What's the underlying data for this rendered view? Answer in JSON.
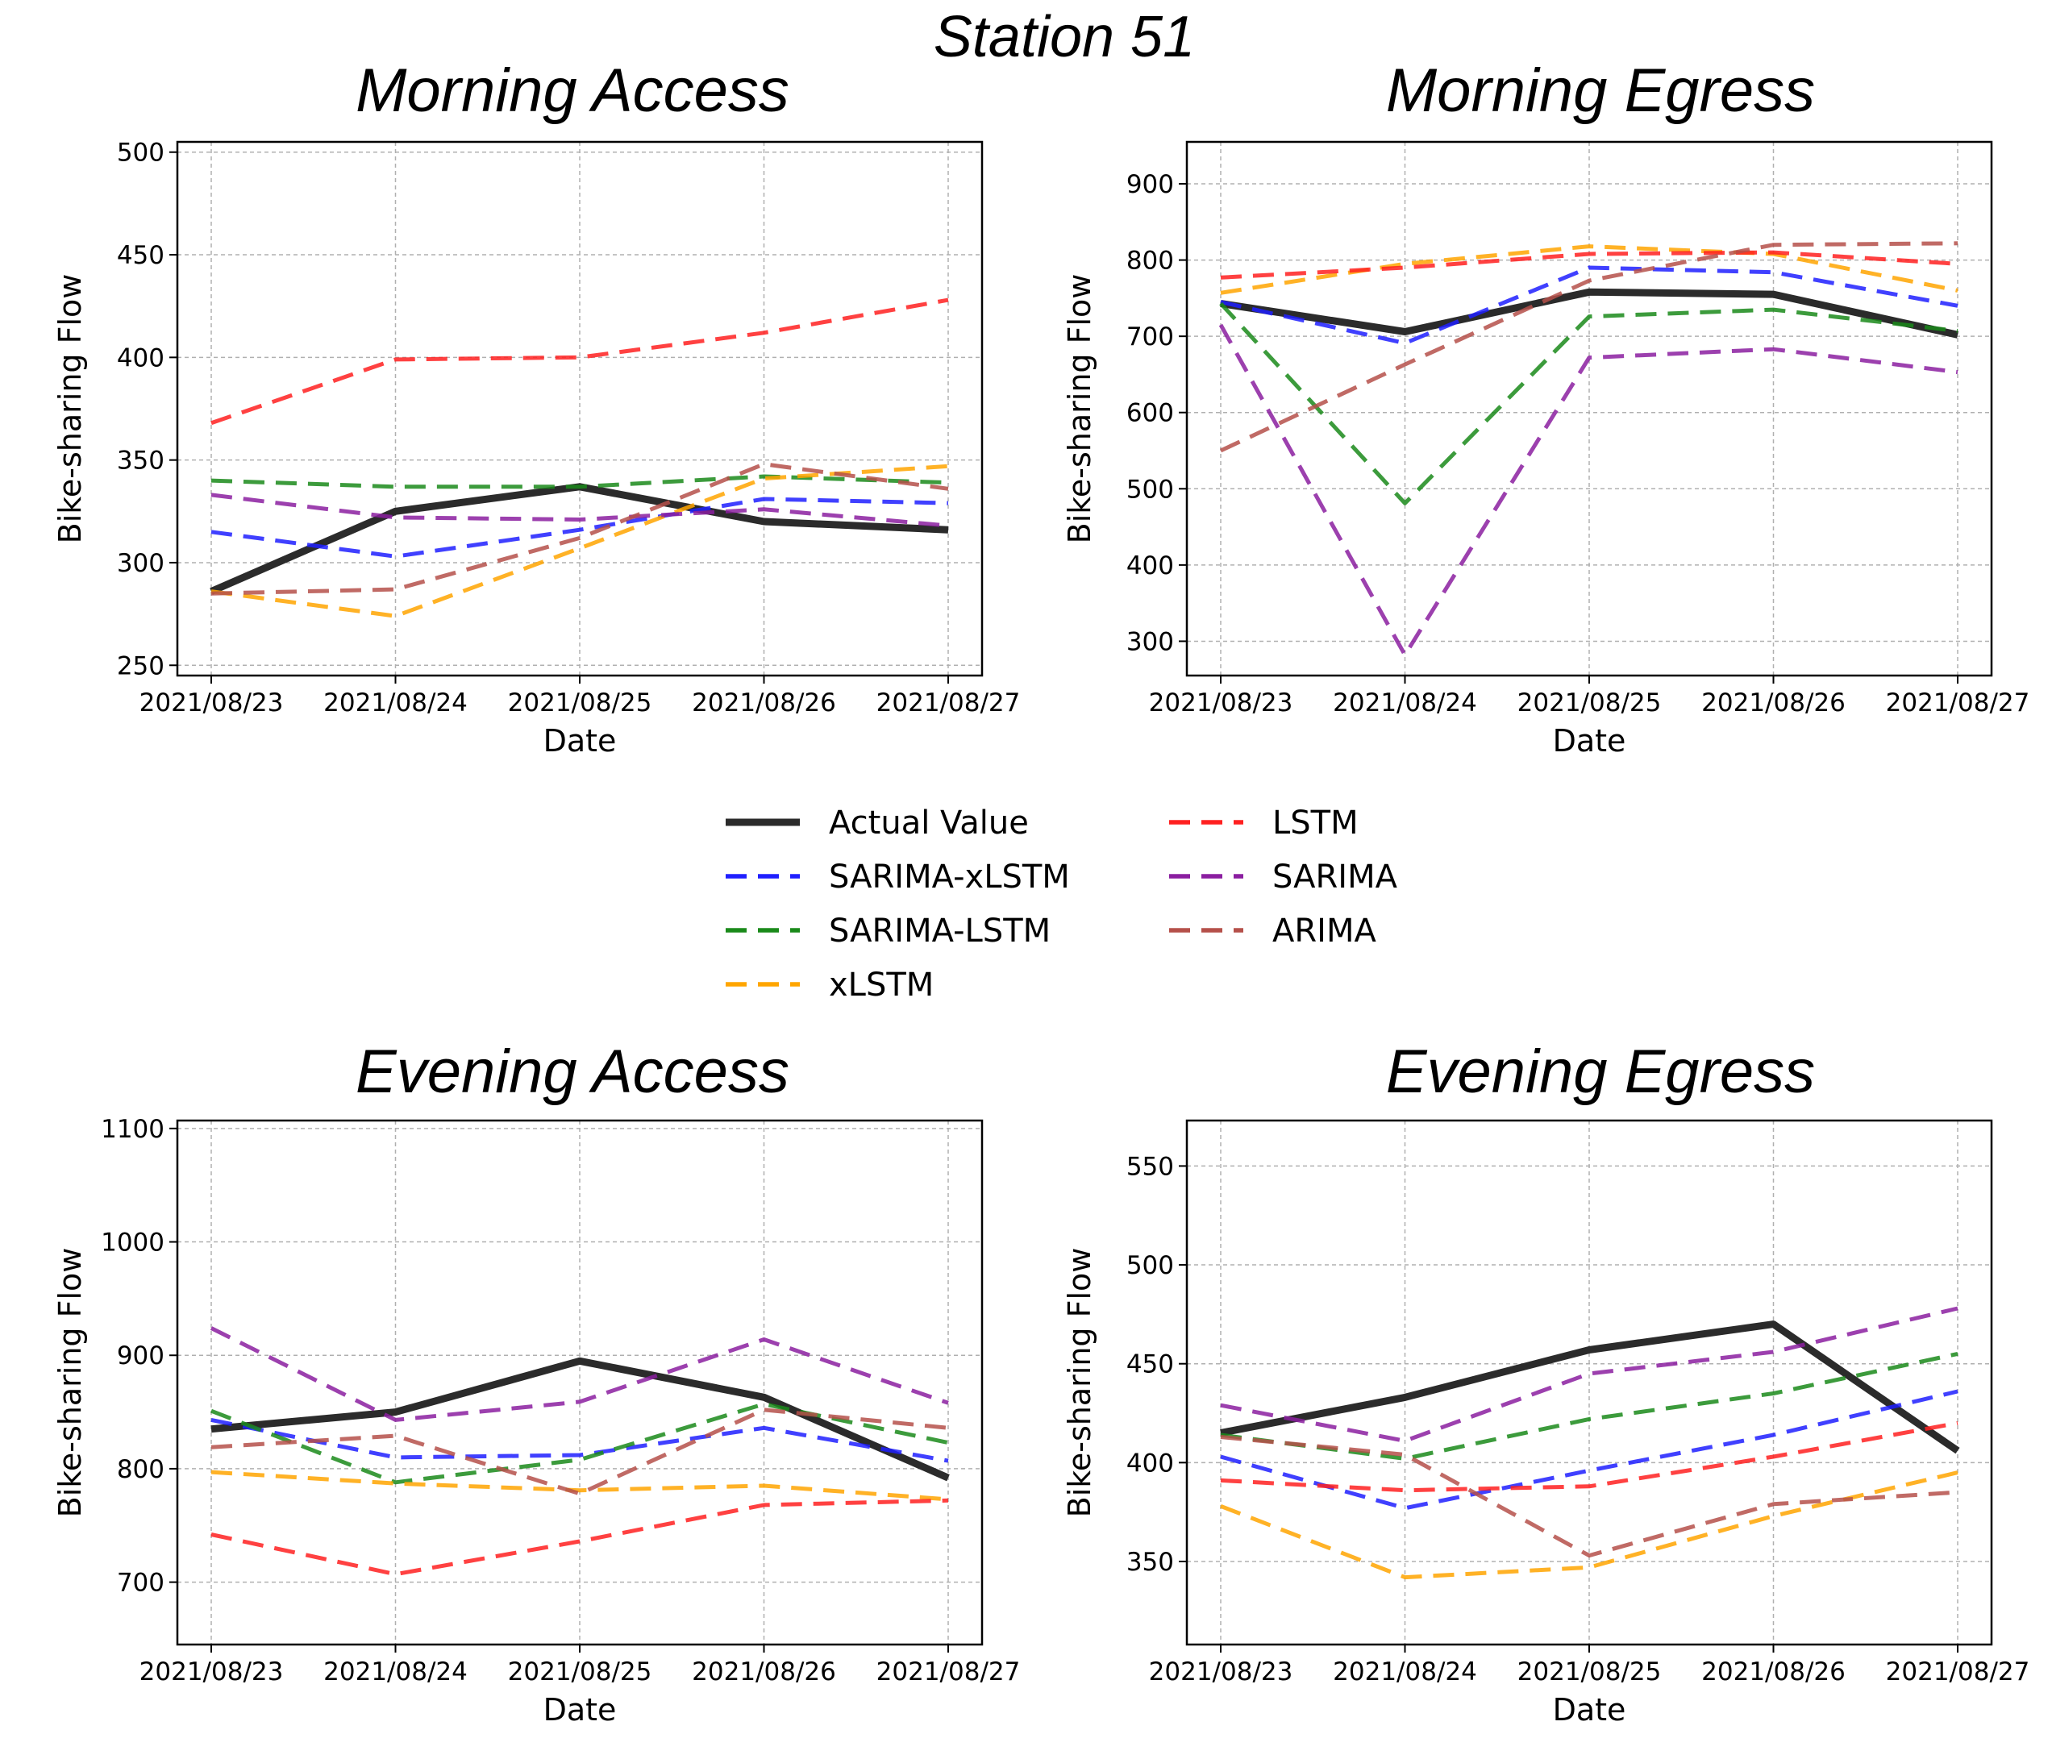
{
  "figure_title": "Station 51",
  "colors": {
    "Actual Value": "#2b2b2b",
    "SARIMA-xLSTM": "#1f1fff",
    "SARIMA-LSTM": "#1a8a1a",
    "xLSTM": "#ffa500",
    "LSTM": "#ff2020",
    "SARIMA": "#8b1ea0",
    "ARIMA": "#b5504a"
  },
  "legend": {
    "entries": [
      "Actual Value",
      "SARIMA-xLSTM",
      "SARIMA-LSTM",
      "xLSTM",
      "LSTM",
      "SARIMA",
      "ARIMA"
    ]
  },
  "chart_data": [
    {
      "type": "line",
      "title": "Morning Access",
      "xlabel": "Date",
      "ylabel": "Bike-sharing Flow",
      "categories": [
        "2021/08/23",
        "2021/08/24",
        "2021/08/25",
        "2021/08/26",
        "2021/08/27"
      ],
      "ylim": [
        245,
        505
      ],
      "yticks": [
        250,
        300,
        350,
        400,
        450,
        500
      ],
      "grid": true,
      "series": [
        {
          "name": "Actual Value",
          "values": [
            286,
            325,
            337,
            320,
            316
          ]
        },
        {
          "name": "SARIMA-xLSTM",
          "values": [
            315,
            303,
            316,
            331,
            329
          ]
        },
        {
          "name": "SARIMA-LSTM",
          "values": [
            340,
            337,
            337,
            342,
            339
          ]
        },
        {
          "name": "xLSTM",
          "values": [
            286,
            274,
            307,
            341,
            347
          ]
        },
        {
          "name": "LSTM",
          "values": [
            368,
            399,
            400,
            412,
            428
          ]
        },
        {
          "name": "SARIMA",
          "values": [
            333,
            322,
            321,
            326,
            318
          ]
        },
        {
          "name": "ARIMA",
          "values": [
            285,
            287,
            312,
            348,
            336
          ]
        }
      ]
    },
    {
      "type": "line",
      "title": "Morning Egress",
      "xlabel": "Date",
      "ylabel": "Bike-sharing Flow",
      "categories": [
        "2021/08/23",
        "2021/08/24",
        "2021/08/25",
        "2021/08/26",
        "2021/08/27"
      ],
      "ylim": [
        255,
        955
      ],
      "yticks": [
        300,
        400,
        500,
        600,
        700,
        800,
        900
      ],
      "grid": true,
      "series": [
        {
          "name": "Actual Value",
          "values": [
            743,
            706,
            758,
            755,
            702
          ]
        },
        {
          "name": "SARIMA-xLSTM",
          "values": [
            745,
            691,
            790,
            784,
            740
          ]
        },
        {
          "name": "SARIMA-LSTM",
          "values": [
            743,
            481,
            726,
            735,
            707
          ]
        },
        {
          "name": "xLSTM",
          "values": [
            757,
            795,
            818,
            808,
            760
          ]
        },
        {
          "name": "LSTM",
          "values": [
            777,
            790,
            808,
            810,
            795
          ]
        },
        {
          "name": "SARIMA",
          "values": [
            715,
            282,
            672,
            683,
            653
          ]
        },
        {
          "name": "ARIMA",
          "values": [
            550,
            663,
            773,
            820,
            822
          ]
        }
      ]
    },
    {
      "type": "line",
      "title": "Evening Access",
      "xlabel": "Date",
      "ylabel": "Bike-sharing Flow",
      "categories": [
        "2021/08/23",
        "2021/08/24",
        "2021/08/25",
        "2021/08/26",
        "2021/08/27"
      ],
      "ylim": [
        645,
        1107
      ],
      "yticks": [
        700,
        800,
        900,
        1000,
        1100
      ],
      "grid": true,
      "series": [
        {
          "name": "Actual Value",
          "values": [
            835,
            850,
            895,
            863,
            792
          ]
        },
        {
          "name": "SARIMA-xLSTM",
          "values": [
            843,
            810,
            812,
            836,
            807
          ]
        },
        {
          "name": "SARIMA-LSTM",
          "values": [
            851,
            788,
            808,
            857,
            823
          ]
        },
        {
          "name": "xLSTM",
          "values": [
            797,
            787,
            781,
            785,
            773
          ]
        },
        {
          "name": "LSTM",
          "values": [
            742,
            707,
            736,
            768,
            772
          ]
        },
        {
          "name": "SARIMA",
          "values": [
            924,
            843,
            859,
            914,
            858
          ]
        },
        {
          "name": "ARIMA",
          "values": [
            819,
            829,
            778,
            852,
            836
          ]
        }
      ]
    },
    {
      "type": "line",
      "title": "Evening Egress",
      "xlabel": "Date",
      "ylabel": "Bike-sharing Flow",
      "categories": [
        "2021/08/23",
        "2021/08/24",
        "2021/08/25",
        "2021/08/26",
        "2021/08/27"
      ],
      "ylim": [
        308,
        573
      ],
      "yticks": [
        350,
        400,
        450,
        500,
        550
      ],
      "grid": true,
      "series": [
        {
          "name": "Actual Value",
          "values": [
            415,
            433,
            457,
            470,
            406
          ]
        },
        {
          "name": "SARIMA-xLSTM",
          "values": [
            403,
            377,
            396,
            414,
            436
          ]
        },
        {
          "name": "SARIMA-LSTM",
          "values": [
            414,
            402,
            422,
            435,
            455
          ]
        },
        {
          "name": "xLSTM",
          "values": [
            378,
            342,
            347,
            373,
            395
          ]
        },
        {
          "name": "LSTM",
          "values": [
            391,
            386,
            388,
            403,
            420
          ]
        },
        {
          "name": "SARIMA",
          "values": [
            429,
            411,
            445,
            456,
            478
          ]
        },
        {
          "name": "ARIMA",
          "values": [
            413,
            404,
            353,
            379,
            385
          ]
        }
      ]
    }
  ]
}
